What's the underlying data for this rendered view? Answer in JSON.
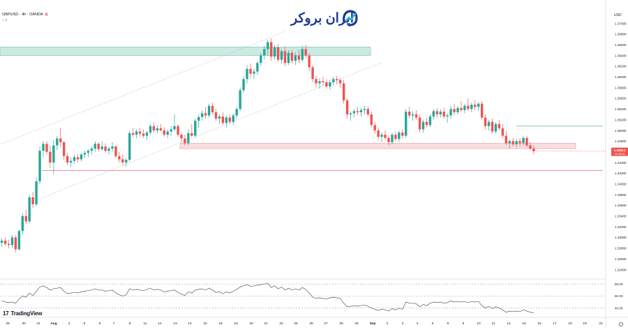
{
  "symbol_legend": {
    "text": "GBPUSD · 4h · OANDA",
    "indicator_hint": "~ 7"
  },
  "brand": {
    "name": "ایران بروکر",
    "color": "#1f3a93"
  },
  "footer": {
    "tradingview_label": "TradingView"
  },
  "price_axis": {
    "currency_label": "USD",
    "current_price_tag": "1.34614",
    "current_price_sub": "01:48:25"
  },
  "chart_data": {
    "type": "candlestick",
    "instrument": "GBPUSD",
    "timeframe": "4h",
    "broker": "OANDA",
    "ylim": [
      1.3225,
      1.3715
    ],
    "y_ticks": [
      1.37,
      1.368,
      1.366,
      1.364,
      1.362,
      1.36,
      1.358,
      1.356,
      1.354,
      1.352,
      1.35,
      1.348,
      1.346,
      1.344,
      1.342,
      1.34,
      1.338,
      1.336,
      1.334,
      1.332,
      1.33,
      1.328,
      1.326,
      1.324
    ],
    "x_ticks": [
      "29",
      "30",
      "31",
      "Aug",
      "4",
      "5",
      "6",
      "7",
      "8",
      "11",
      "12",
      "13",
      "14",
      "15",
      "18",
      "19",
      "20",
      "21",
      "22",
      "25",
      "26",
      "27",
      "28",
      "29",
      "Sep",
      "2",
      "3",
      "4",
      "5",
      "8",
      "9",
      "10",
      "11",
      "12",
      "15",
      "16",
      "17",
      "18",
      "19",
      "22"
    ],
    "candles_ohlc": [
      [
        1.329,
        1.3298,
        1.3282,
        1.3294
      ],
      [
        1.3294,
        1.33,
        1.3285,
        1.3288
      ],
      [
        1.3288,
        1.3296,
        1.328,
        1.3286
      ],
      [
        1.3286,
        1.3305,
        1.328,
        1.33
      ],
      [
        1.33,
        1.3304,
        1.3272,
        1.3278
      ],
      [
        1.3278,
        1.3315,
        1.3275,
        1.3312
      ],
      [
        1.3312,
        1.3345,
        1.3305,
        1.334
      ],
      [
        1.334,
        1.3352,
        1.3325,
        1.333
      ],
      [
        1.333,
        1.338,
        1.3326,
        1.3375
      ],
      [
        1.3375,
        1.3385,
        1.3355,
        1.3362
      ],
      [
        1.3362,
        1.3412,
        1.3358,
        1.3405
      ],
      [
        1.3405,
        1.347,
        1.34,
        1.3462
      ],
      [
        1.3462,
        1.348,
        1.345,
        1.3475
      ],
      [
        1.3475,
        1.348,
        1.3455,
        1.346
      ],
      [
        1.346,
        1.3472,
        1.343,
        1.344
      ],
      [
        1.344,
        1.3482,
        1.3418,
        1.3472
      ],
      [
        1.3472,
        1.349,
        1.3463,
        1.3485
      ],
      [
        1.3485,
        1.3505,
        1.347,
        1.3478
      ],
      [
        1.3478,
        1.348,
        1.3445,
        1.3452
      ],
      [
        1.3452,
        1.3458,
        1.3435,
        1.344
      ],
      [
        1.344,
        1.345,
        1.3432,
        1.3443
      ],
      [
        1.3443,
        1.3455,
        1.3438,
        1.345
      ],
      [
        1.345,
        1.3456,
        1.344,
        1.3446
      ],
      [
        1.3446,
        1.3458,
        1.3442,
        1.3455
      ],
      [
        1.3455,
        1.3462,
        1.3448,
        1.3458
      ],
      [
        1.3458,
        1.3465,
        1.345,
        1.3462
      ],
      [
        1.3462,
        1.347,
        1.3455,
        1.3466
      ],
      [
        1.3466,
        1.348,
        1.346,
        1.3475
      ],
      [
        1.3475,
        1.3478,
        1.346,
        1.3465
      ],
      [
        1.3465,
        1.348,
        1.3462,
        1.347
      ],
      [
        1.347,
        1.3476,
        1.3458,
        1.3462
      ],
      [
        1.3462,
        1.347,
        1.3455,
        1.3466
      ],
      [
        1.3466,
        1.3478,
        1.346,
        1.347
      ],
      [
        1.347,
        1.3472,
        1.3448,
        1.3452
      ],
      [
        1.3452,
        1.346,
        1.344,
        1.3446
      ],
      [
        1.3446,
        1.3455,
        1.3435,
        1.344
      ],
      [
        1.344,
        1.3448,
        1.3432,
        1.3445
      ],
      [
        1.3445,
        1.35,
        1.3442,
        1.3495
      ],
      [
        1.3495,
        1.3505,
        1.3488,
        1.3492
      ],
      [
        1.3492,
        1.3502,
        1.3485,
        1.3498
      ],
      [
        1.3498,
        1.3505,
        1.3488,
        1.3494
      ],
      [
        1.3494,
        1.3502,
        1.3486,
        1.349
      ],
      [
        1.349,
        1.35,
        1.3482,
        1.3496
      ],
      [
        1.3496,
        1.3512,
        1.3492,
        1.3508
      ],
      [
        1.3508,
        1.3515,
        1.3496,
        1.35
      ],
      [
        1.35,
        1.351,
        1.3494,
        1.3504
      ],
      [
        1.3504,
        1.3512,
        1.3498,
        1.35
      ],
      [
        1.35,
        1.3506,
        1.3488,
        1.3492
      ],
      [
        1.3492,
        1.3502,
        1.3485,
        1.3498
      ],
      [
        1.3498,
        1.3508,
        1.349,
        1.3502
      ],
      [
        1.3502,
        1.353,
        1.3498,
        1.3508
      ],
      [
        1.3508,
        1.3512,
        1.3488,
        1.3492
      ],
      [
        1.3492,
        1.3496,
        1.3478,
        1.3485
      ],
      [
        1.3485,
        1.3492,
        1.3472,
        1.3476
      ],
      [
        1.3476,
        1.3502,
        1.3472,
        1.3495
      ],
      [
        1.3495,
        1.3512,
        1.3488,
        1.349
      ],
      [
        1.349,
        1.3522,
        1.3486,
        1.3518
      ],
      [
        1.3518,
        1.353,
        1.3505,
        1.3525
      ],
      [
        1.3525,
        1.3538,
        1.3518,
        1.3532
      ],
      [
        1.3532,
        1.3544,
        1.3522,
        1.3528
      ],
      [
        1.3528,
        1.355,
        1.3524,
        1.3546
      ],
      [
        1.3546,
        1.3552,
        1.353,
        1.3534
      ],
      [
        1.3534,
        1.354,
        1.3518,
        1.3522
      ],
      [
        1.3522,
        1.353,
        1.3512,
        1.3526
      ],
      [
        1.3526,
        1.3534,
        1.351,
        1.3514
      ],
      [
        1.3514,
        1.3528,
        1.3506,
        1.3524
      ],
      [
        1.3524,
        1.353,
        1.3512,
        1.3516
      ],
      [
        1.3516,
        1.3532,
        1.351,
        1.3528
      ],
      [
        1.3528,
        1.3545,
        1.3522,
        1.354
      ],
      [
        1.354,
        1.358,
        1.3536,
        1.3575
      ],
      [
        1.3575,
        1.3602,
        1.357,
        1.3596
      ],
      [
        1.3596,
        1.3622,
        1.3588,
        1.3615
      ],
      [
        1.3615,
        1.3625,
        1.3598,
        1.3606
      ],
      [
        1.3606,
        1.3615,
        1.3596,
        1.361
      ],
      [
        1.361,
        1.363,
        1.3604,
        1.3626
      ],
      [
        1.3626,
        1.3645,
        1.362,
        1.364
      ],
      [
        1.364,
        1.3658,
        1.3632,
        1.3652
      ],
      [
        1.3652,
        1.367,
        1.364,
        1.3665
      ],
      [
        1.3665,
        1.3672,
        1.363,
        1.3638
      ],
      [
        1.3638,
        1.366,
        1.3632,
        1.3655
      ],
      [
        1.3655,
        1.3662,
        1.3628,
        1.3632
      ],
      [
        1.3632,
        1.3652,
        1.3625,
        1.3648
      ],
      [
        1.3648,
        1.3656,
        1.362,
        1.3626
      ],
      [
        1.3626,
        1.365,
        1.3622,
        1.3645
      ],
      [
        1.3645,
        1.365,
        1.3625,
        1.363
      ],
      [
        1.363,
        1.3646,
        1.3622,
        1.364
      ],
      [
        1.364,
        1.365,
        1.3626,
        1.3632
      ],
      [
        1.3632,
        1.3658,
        1.3628,
        1.3652
      ],
      [
        1.3652,
        1.366,
        1.3635,
        1.364
      ],
      [
        1.364,
        1.3645,
        1.3612,
        1.3618
      ],
      [
        1.3618,
        1.3622,
        1.359,
        1.3596
      ],
      [
        1.3596,
        1.3602,
        1.358,
        1.3588
      ],
      [
        1.3588,
        1.3598,
        1.3578,
        1.3592
      ],
      [
        1.3592,
        1.36,
        1.3584,
        1.359
      ],
      [
        1.359,
        1.3596,
        1.3578,
        1.3582
      ],
      [
        1.3582,
        1.3595,
        1.3576,
        1.359
      ],
      [
        1.359,
        1.36,
        1.3584,
        1.3596
      ],
      [
        1.3596,
        1.3602,
        1.3586,
        1.3594
      ],
      [
        1.3594,
        1.3598,
        1.358,
        1.3588
      ],
      [
        1.3588,
        1.3595,
        1.355,
        1.3556
      ],
      [
        1.3556,
        1.356,
        1.3522,
        1.353
      ],
      [
        1.353,
        1.3536,
        1.3518,
        1.3532
      ],
      [
        1.3532,
        1.354,
        1.3524,
        1.3536
      ],
      [
        1.3536,
        1.3544,
        1.3528,
        1.3534
      ],
      [
        1.3534,
        1.3542,
        1.3526,
        1.3538
      ],
      [
        1.3538,
        1.3546,
        1.353,
        1.354
      ],
      [
        1.354,
        1.3545,
        1.3525,
        1.353
      ],
      [
        1.353,
        1.3535,
        1.3505,
        1.351
      ],
      [
        1.351,
        1.3516,
        1.3494,
        1.35
      ],
      [
        1.35,
        1.3506,
        1.3482,
        1.3488
      ],
      [
        1.3488,
        1.3496,
        1.3478,
        1.3492
      ],
      [
        1.3492,
        1.35,
        1.3482,
        1.3486
      ],
      [
        1.3486,
        1.3492,
        1.3472,
        1.3478
      ],
      [
        1.3478,
        1.3496,
        1.3474,
        1.3492
      ],
      [
        1.3492,
        1.3498,
        1.348,
        1.3484
      ],
      [
        1.3484,
        1.35,
        1.3478,
        1.3496
      ],
      [
        1.3496,
        1.3502,
        1.3485,
        1.349
      ],
      [
        1.349,
        1.354,
        1.3486,
        1.3535
      ],
      [
        1.3535,
        1.3544,
        1.3522,
        1.3528
      ],
      [
        1.3528,
        1.3536,
        1.3518,
        1.353
      ],
      [
        1.353,
        1.3538,
        1.352,
        1.3524
      ],
      [
        1.3524,
        1.353,
        1.3496,
        1.3502
      ],
      [
        1.3502,
        1.352,
        1.3496,
        1.3516
      ],
      [
        1.3516,
        1.3524,
        1.3506,
        1.351
      ],
      [
        1.351,
        1.353,
        1.3506,
        1.3526
      ],
      [
        1.3526,
        1.354,
        1.352,
        1.3536
      ],
      [
        1.3536,
        1.3542,
        1.3524,
        1.353
      ],
      [
        1.353,
        1.354,
        1.3524,
        1.3535
      ],
      [
        1.3535,
        1.3542,
        1.3522,
        1.3526
      ],
      [
        1.3526,
        1.3532,
        1.3514,
        1.3528
      ],
      [
        1.3528,
        1.3546,
        1.3522,
        1.354
      ],
      [
        1.354,
        1.355,
        1.3528,
        1.3534
      ],
      [
        1.3534,
        1.3546,
        1.353,
        1.3542
      ],
      [
        1.3542,
        1.3555,
        1.3534,
        1.3538
      ],
      [
        1.3538,
        1.355,
        1.3532,
        1.3546
      ],
      [
        1.3546,
        1.356,
        1.3536,
        1.354
      ],
      [
        1.354,
        1.3552,
        1.3534,
        1.3548
      ],
      [
        1.3548,
        1.3556,
        1.3538,
        1.3544
      ],
      [
        1.3544,
        1.3552,
        1.3536,
        1.355
      ],
      [
        1.355,
        1.3555,
        1.352,
        1.3524
      ],
      [
        1.3524,
        1.353,
        1.3502,
        1.3508
      ],
      [
        1.3508,
        1.352,
        1.35,
        1.3516
      ],
      [
        1.3516,
        1.3522,
        1.3494,
        1.3498
      ],
      [
        1.3498,
        1.3516,
        1.3494,
        1.3512
      ],
      [
        1.3512,
        1.352,
        1.35,
        1.3504
      ],
      [
        1.3504,
        1.3512,
        1.3486,
        1.349
      ],
      [
        1.349,
        1.35,
        1.3472,
        1.3476
      ],
      [
        1.3476,
        1.3484,
        1.3466,
        1.348
      ],
      [
        1.348,
        1.3486,
        1.347,
        1.3474
      ],
      [
        1.3474,
        1.3484,
        1.3468,
        1.348
      ],
      [
        1.348,
        1.3486,
        1.347,
        1.3476
      ],
      [
        1.3476,
        1.349,
        1.3472,
        1.3486
      ],
      [
        1.3486,
        1.349,
        1.3468,
        1.3472
      ],
      [
        1.3472,
        1.3478,
        1.3464,
        1.3466
      ],
      [
        1.3466,
        1.3472,
        1.3455,
        1.3461
      ]
    ],
    "resistance_zone": {
      "from": 1.364,
      "to": 1.3656,
      "color": "#9fd8cb"
    },
    "support_zone": {
      "from": 1.3466,
      "to": 1.3476,
      "color": "#f7c7cc"
    },
    "horizontal_line": {
      "price": 1.3425,
      "color": "#e06b7d"
    },
    "short_level_line": {
      "price": 1.3508,
      "color": "#4aa3a3"
    },
    "channel_lines": [
      {
        "start_index": 0,
        "start_price": 1.3475,
        "end_index": 82,
        "end_price": 1.3685
      },
      {
        "start_index": 12,
        "start_price": 1.3375,
        "end_index": 110,
        "end_price": 1.3627
      }
    ],
    "current_price": 1.34614,
    "rsi": {
      "levels": [
        80.0,
        60.0,
        40.0
      ],
      "ylim": [
        28,
        86
      ],
      "values": [
        52,
        50,
        49,
        50,
        48,
        55,
        60,
        58,
        65,
        61,
        68,
        75,
        77,
        74,
        70,
        72,
        73,
        74,
        68,
        64,
        65,
        66,
        65,
        67,
        68,
        69,
        70,
        72,
        70,
        70,
        68,
        69,
        70,
        65,
        62,
        60,
        62,
        72,
        70,
        71,
        70,
        69,
        71,
        73,
        70,
        71,
        70,
        67,
        68,
        69,
        70,
        66,
        63,
        61,
        67,
        65,
        70,
        71,
        72,
        70,
        73,
        70,
        66,
        67,
        64,
        67,
        65,
        68,
        71,
        75,
        77,
        79,
        76,
        77,
        78,
        79,
        80,
        81,
        74,
        77,
        72,
        75,
        70,
        73,
        70,
        72,
        70,
        74,
        71,
        65,
        58,
        56,
        57,
        56,
        55,
        57,
        58,
        57,
        56,
        48,
        42,
        43,
        44,
        43,
        44,
        45,
        43,
        40,
        38,
        36,
        38,
        37,
        35,
        39,
        37,
        40,
        38,
        50,
        48,
        48,
        47,
        42,
        46,
        44,
        48,
        50,
        49,
        50,
        48,
        49,
        52,
        50,
        51,
        50,
        51,
        49,
        51,
        50,
        51,
        44,
        40,
        43,
        39,
        42,
        40,
        37,
        33,
        35,
        34,
        35,
        34,
        37,
        35,
        33,
        32
      ]
    }
  }
}
